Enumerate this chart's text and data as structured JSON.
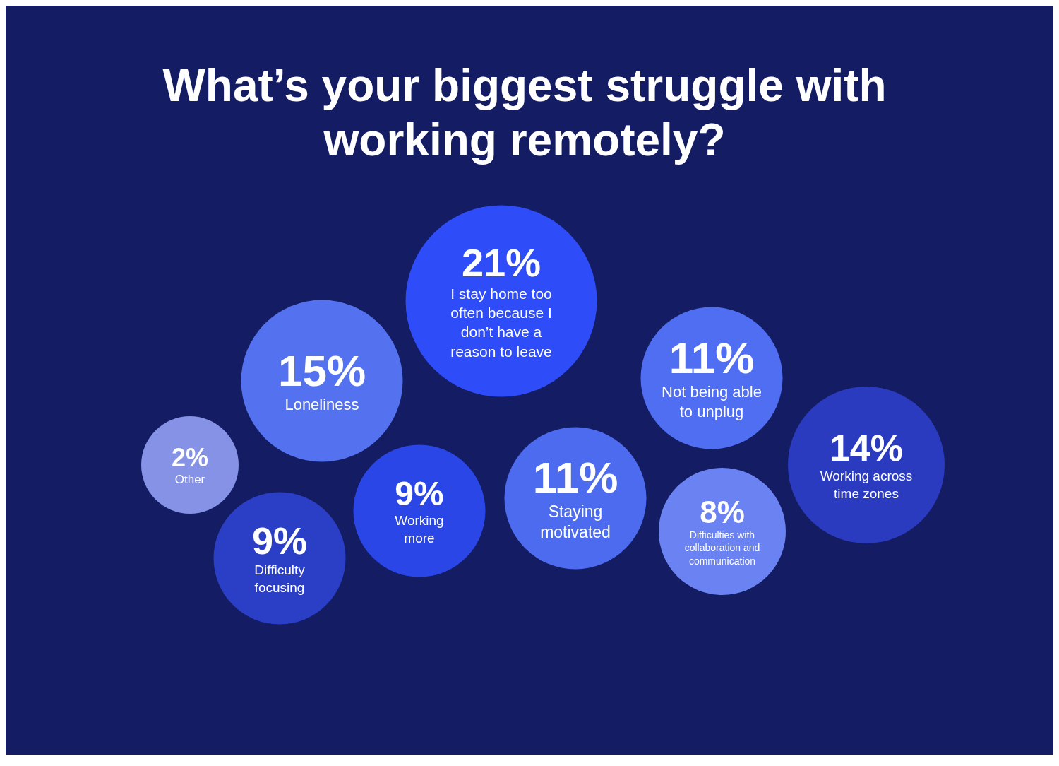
{
  "chart_data": {
    "type": "other",
    "title": "What’s your biggest struggle with working remotely?",
    "categories": [
      "I stay home too often because I don’t have a reason to leave",
      "Loneliness",
      "Not being able to unplug",
      "Other",
      "Working more",
      "Staying motivated",
      "Working across time zones",
      "Difficulties with collaboration and communication",
      "Difficulty focusing"
    ],
    "values": [
      21,
      15,
      11,
      2,
      9,
      11,
      14,
      8,
      9
    ],
    "colors": [
      "#2e4cf7",
      "#5471ef",
      "#4f6ef2",
      "#8592e6",
      "#2a46e6",
      "#4d6bee",
      "#2a3bc0",
      "#6b83f2",
      "#2b3fc6"
    ],
    "value_labels": [
      "21%",
      "15%",
      "11%",
      "2%",
      "9%",
      "11%",
      "14%",
      "8%",
      "9%"
    ]
  }
}
